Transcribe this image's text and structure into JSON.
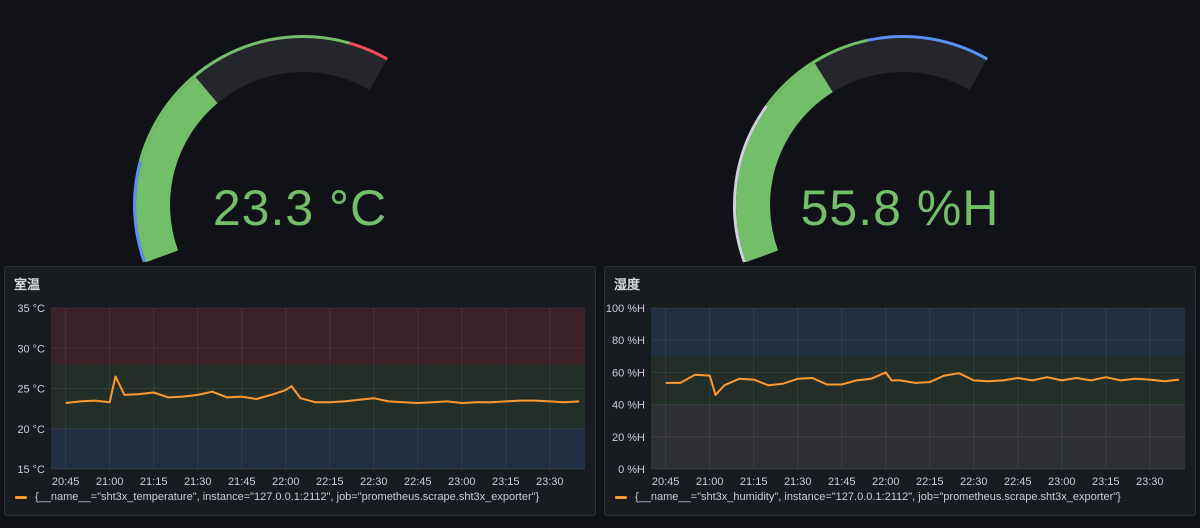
{
  "gauges": [
    {
      "id": "temp",
      "value_label": "23.3 °C",
      "value_fraction": 0.5,
      "threshold_arcs": [
        {
          "from": 0.0,
          "to": 0.25,
          "color": "#5b8ff9"
        },
        {
          "from": 0.25,
          "to": 0.9,
          "color": "#73bf69"
        },
        {
          "from": 0.9,
          "to": 1.0,
          "color": "#f2495c"
        }
      ],
      "fill_color": "#73bf69"
    },
    {
      "id": "humidity",
      "value_label": "55.8 %H",
      "value_fraction": 0.558,
      "threshold_arcs": [
        {
          "from": 0.0,
          "to": 0.4,
          "color": "#d0d0e0"
        },
        {
          "from": 0.4,
          "to": 0.7,
          "color": "#73bf69"
        },
        {
          "from": 0.7,
          "to": 1.0,
          "color": "#5b8ff9"
        }
      ],
      "fill_color": "#73bf69"
    }
  ],
  "panels": [
    {
      "id": "temp-panel",
      "title": "室温",
      "legend": "{__name__=\"sht3x_temperature\", instance=\"127.0.0.1:2112\", job=\"prometheus.scrape.sht3x_exporter\"}",
      "y_ticks": [
        "35 °C",
        "30 °C",
        "25 °C",
        "20 °C",
        "15 °C"
      ],
      "x_ticks": [
        "20:45",
        "21:00",
        "21:15",
        "21:30",
        "21:45",
        "22:00",
        "22:15",
        "22:30",
        "22:45",
        "23:00",
        "23:15",
        "23:30"
      ]
    },
    {
      "id": "hum-panel",
      "title": "湿度",
      "legend": "{__name__=\"sht3x_humidity\", instance=\"127.0.0.1:2112\", job=\"prometheus.scrape.sht3x_exporter\"}",
      "y_ticks": [
        "100 %H",
        "80 %H",
        "60 %H",
        "40 %H",
        "20 %H",
        "0 %H"
      ],
      "x_ticks": [
        "20:45",
        "21:00",
        "21:15",
        "21:30",
        "21:45",
        "22:00",
        "22:15",
        "22:30",
        "22:45",
        "23:00",
        "23:15",
        "23:30"
      ]
    }
  ],
  "chart_data": [
    {
      "type": "line",
      "title": "室温",
      "ylim": [
        15,
        35
      ],
      "x": [
        "20:45",
        "20:50",
        "20:55",
        "21:00",
        "21:02",
        "21:05",
        "21:10",
        "21:15",
        "21:20",
        "21:25",
        "21:30",
        "21:35",
        "21:40",
        "21:45",
        "21:50",
        "21:55",
        "22:00",
        "22:02",
        "22:05",
        "22:10",
        "22:15",
        "22:20",
        "22:25",
        "22:30",
        "22:35",
        "22:40",
        "22:45",
        "22:50",
        "22:55",
        "23:00",
        "23:05",
        "23:10",
        "23:15",
        "23:20",
        "23:25",
        "23:30",
        "23:35",
        "23:40"
      ],
      "series": [
        {
          "name": "{__name__=\"sht3x_temperature\", instance=\"127.0.0.1:2112\", job=\"prometheus.scrape.sht3x_exporter\"}",
          "values": [
            23.2,
            23.4,
            23.5,
            23.3,
            26.5,
            24.2,
            24.3,
            24.5,
            23.9,
            24.0,
            24.2,
            24.6,
            23.9,
            24.0,
            23.7,
            24.2,
            24.8,
            25.3,
            23.8,
            23.3,
            23.3,
            23.4,
            23.6,
            23.8,
            23.4,
            23.3,
            23.2,
            23.3,
            23.4,
            23.2,
            23.3,
            23.3,
            23.4,
            23.5,
            23.5,
            23.4,
            23.3,
            23.4
          ]
        }
      ],
      "bands": [
        {
          "from": 15,
          "to": 20,
          "color": "blue"
        },
        {
          "from": 20,
          "to": 28,
          "color": "green"
        },
        {
          "from": 28,
          "to": 35,
          "color": "red"
        }
      ],
      "grid": true,
      "legend_position": "bottom"
    },
    {
      "type": "line",
      "title": "湿度",
      "ylim": [
        0,
        100
      ],
      "x": [
        "20:45",
        "20:50",
        "20:55",
        "21:00",
        "21:02",
        "21:05",
        "21:10",
        "21:15",
        "21:20",
        "21:25",
        "21:30",
        "21:35",
        "21:40",
        "21:45",
        "21:50",
        "21:55",
        "22:00",
        "22:02",
        "22:05",
        "22:10",
        "22:15",
        "22:20",
        "22:25",
        "22:30",
        "22:35",
        "22:40",
        "22:45",
        "22:50",
        "22:55",
        "23:00",
        "23:05",
        "23:10",
        "23:15",
        "23:20",
        "23:25",
        "23:30",
        "23:35",
        "23:40"
      ],
      "series": [
        {
          "name": "{__name__=\"sht3x_humidity\", instance=\"127.0.0.1:2112\", job=\"prometheus.scrape.sht3x_exporter\"}",
          "values": [
            53.5,
            53.5,
            58.5,
            58.0,
            46.0,
            52.0,
            56.0,
            55.5,
            52.0,
            53.0,
            56.0,
            56.5,
            52.5,
            52.5,
            55.0,
            56.0,
            60.0,
            55.0,
            55.0,
            53.5,
            54.0,
            58.0,
            59.5,
            55.0,
            54.5,
            55.0,
            56.5,
            55.0,
            57.0,
            55.0,
            56.5,
            55.0,
            57.0,
            55.0,
            56.0,
            55.5,
            54.5,
            55.5
          ]
        }
      ],
      "bands": [
        {
          "from": 0,
          "to": 40,
          "color": "gray"
        },
        {
          "from": 40,
          "to": 70,
          "color": "green"
        },
        {
          "from": 70,
          "to": 100,
          "color": "blue"
        }
      ],
      "grid": true,
      "legend_position": "bottom"
    }
  ]
}
